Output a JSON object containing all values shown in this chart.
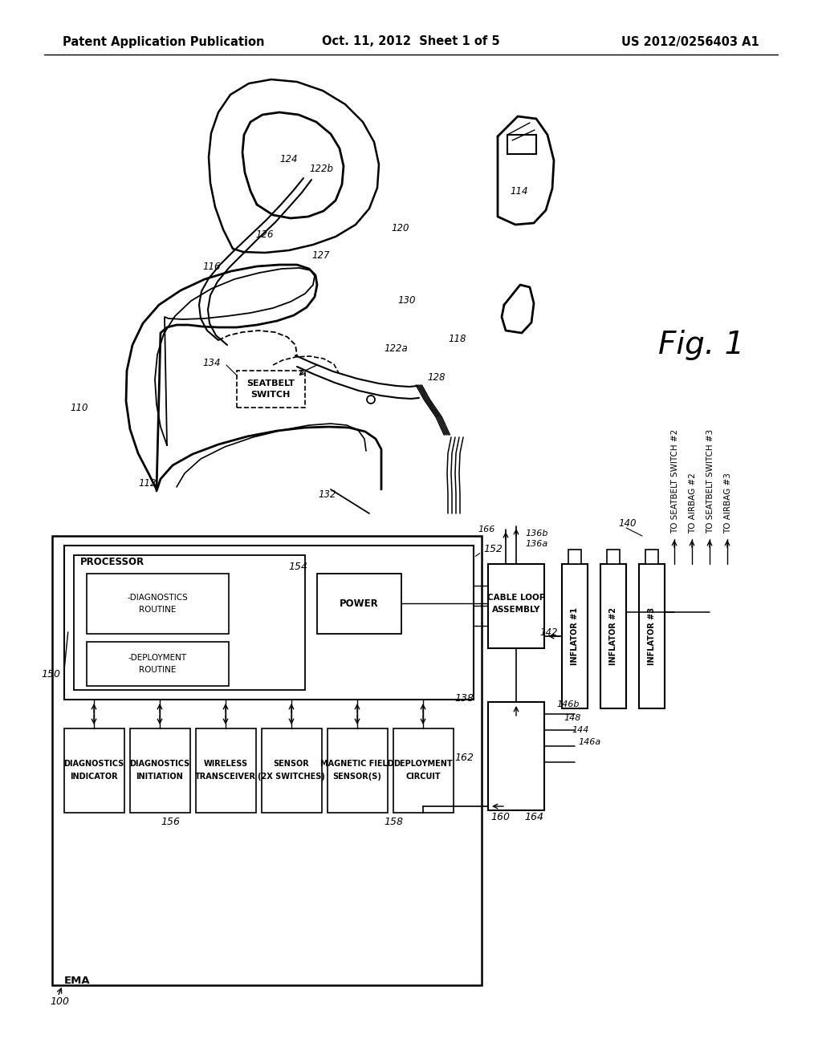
{
  "header_left": "Patent Application Publication",
  "header_center": "Oct. 11, 2012  Sheet 1 of 5",
  "header_right": "US 2012/0256403 A1",
  "fig_label": "Fig. 1",
  "bg_color": "#ffffff",
  "line_color": "#000000",
  "page_width": 10.24,
  "page_height": 13.2
}
